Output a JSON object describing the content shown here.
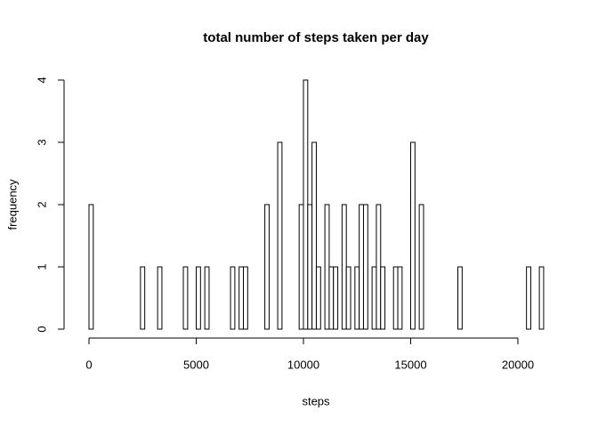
{
  "chart_data": {
    "type": "histogram",
    "title": "total number of steps taken per day",
    "x_label": "steps",
    "y_label": "frequency",
    "bins": [
      0,
      200,
      400,
      600,
      800,
      1000,
      1200,
      1400,
      1600,
      1800,
      2000,
      2200,
      2400,
      2600,
      2800,
      3000,
      3200,
      3400,
      3600,
      3800,
      4000,
      4200,
      4400,
      4600,
      4800,
      5000,
      5200,
      5400,
      5600,
      5800,
      6000,
      6200,
      6400,
      6600,
      6800,
      7000,
      7200,
      7400,
      7600,
      7800,
      8000,
      8200,
      8400,
      8600,
      8800,
      9000,
      9200,
      9400,
      9600,
      9800,
      10000,
      10200,
      10400,
      10600,
      10800,
      11000,
      11200,
      11400,
      11600,
      11800,
      12000,
      12200,
      12400,
      12600,
      12800,
      13000,
      13200,
      13400,
      13600,
      13800,
      14000,
      14200,
      14400,
      14600,
      14800,
      15000,
      15200,
      15400,
      15600,
      15800,
      16000,
      16200,
      16400,
      16600,
      16800,
      17000,
      17200,
      17400,
      17600,
      17800,
      18000,
      18200,
      18400,
      18600,
      18800,
      19000,
      19200,
      19400,
      19600,
      19800,
      20000,
      20200,
      20400,
      20600,
      20800,
      21000,
      21200
    ],
    "values": [
      2,
      0,
      0,
      0,
      0,
      0,
      0,
      0,
      0,
      0,
      0,
      0,
      1,
      0,
      0,
      0,
      1,
      0,
      0,
      0,
      0,
      0,
      1,
      0,
      0,
      1,
      0,
      1,
      0,
      0,
      0,
      0,
      0,
      1,
      0,
      1,
      1,
      0,
      0,
      0,
      0,
      2,
      0,
      0,
      3,
      0,
      0,
      0,
      0,
      2,
      4,
      2,
      3,
      1,
      0,
      2,
      1,
      1,
      0,
      2,
      1,
      0,
      1,
      2,
      2,
      0,
      1,
      2,
      1,
      0,
      0,
      1,
      1,
      0,
      0,
      3,
      0,
      2,
      0,
      0,
      0,
      0,
      0,
      0,
      0,
      0,
      1,
      0,
      0,
      0,
      0,
      0,
      0,
      0,
      0,
      0,
      0,
      0,
      0,
      0,
      0,
      0,
      1,
      0,
      0,
      1
    ],
    "color": "#ffffff",
    "xlim": [
      0,
      20000
    ],
    "xticks": [
      0,
      5000,
      10000,
      15000,
      20000
    ],
    "ylim": [
      0,
      4
    ],
    "yticks": [
      0,
      1,
      2,
      3,
      4
    ]
  }
}
